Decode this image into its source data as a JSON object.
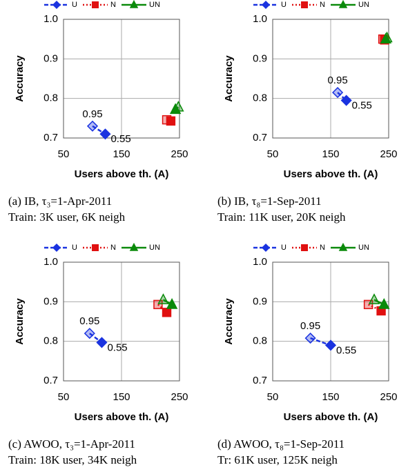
{
  "chart_data": [
    {
      "type": "scatter",
      "xlabel": "Users above th. (A)",
      "ylabel": "Accuracy",
      "xlim": [
        50,
        250
      ],
      "ylim": [
        0.7,
        1.0
      ],
      "xticks": [
        50,
        150,
        250
      ],
      "yticks": [
        0.7,
        0.8,
        0.9,
        {
          "value": 1.0,
          "label": "1.0"
        }
      ],
      "grid": true,
      "legend": "top",
      "caption": [
        "(a) IB, τ₃=1-Apr-2011",
        "Train: 3K user, 6K neigh"
      ],
      "annotations": [
        "0.95",
        "0.55"
      ],
      "series": [
        {
          "name": "U",
          "color": "#1a33e0",
          "marker": "diamond",
          "dash": "dashed",
          "x": [
            100,
            122
          ],
          "values": [
            0.73,
            0.71
          ]
        },
        {
          "name": "N",
          "color": "#e01010",
          "marker": "square",
          "dash": "dotted",
          "x": [
            228,
            235
          ],
          "values": [
            0.746,
            0.743
          ]
        },
        {
          "name": "UN",
          "color": "#0a8a0a",
          "marker": "triangle",
          "dash": "solid",
          "x": [
            248,
            243
          ],
          "values": [
            0.778,
            0.772
          ]
        }
      ]
    },
    {
      "type": "scatter",
      "xlabel": "Users above th. (A)",
      "ylabel": "Accuracy",
      "xlim": [
        50,
        250
      ],
      "ylim": [
        0.7,
        1.0
      ],
      "xticks": [
        50,
        150,
        250
      ],
      "yticks": [
        0.7,
        0.8,
        0.9,
        {
          "value": 1.0,
          "label": "1.0"
        }
      ],
      "grid": true,
      "legend": "top",
      "caption": [
        "(b) IB, τ₈=1-Sep-2011",
        "Train: 11K user, 20K neigh"
      ],
      "annotations": [
        "0.95",
        "0.55"
      ],
      "series": [
        {
          "name": "U",
          "color": "#1a33e0",
          "marker": "diamond",
          "dash": "dashed",
          "x": [
            162,
            177
          ],
          "values": [
            0.815,
            0.795
          ]
        },
        {
          "name": "N",
          "color": "#e01010",
          "marker": "square",
          "dash": "dotted",
          "x": [
            240,
            243
          ],
          "values": [
            0.95,
            0.948
          ]
        },
        {
          "name": "UN",
          "color": "#0a8a0a",
          "marker": "triangle",
          "dash": "solid",
          "x": [
            247,
            245
          ],
          "values": [
            0.953,
            0.95
          ]
        }
      ]
    },
    {
      "type": "scatter",
      "xlabel": "Users above th. (A)",
      "ylabel": "Accuracy",
      "xlim": [
        50,
        250
      ],
      "ylim": [
        0.7,
        1.0
      ],
      "xticks": [
        50,
        150,
        250
      ],
      "yticks": [
        0.7,
        0.8,
        0.9,
        {
          "value": 1.0,
          "label": "1.0"
        }
      ],
      "grid": true,
      "legend": "top",
      "caption": [
        "(c) AWOO, τ₃=1-Apr-2011",
        "Train: 18K user, 34K neigh"
      ],
      "annotations": [
        "0.95",
        "0.55"
      ],
      "series": [
        {
          "name": "U",
          "color": "#1a33e0",
          "marker": "diamond",
          "dash": "dashed",
          "x": [
            95,
            116
          ],
          "values": [
            0.82,
            0.797
          ]
        },
        {
          "name": "N",
          "color": "#e01010",
          "marker": "square",
          "dash": "dotted",
          "x": [
            213,
            228
          ],
          "values": [
            0.893,
            0.873
          ]
        },
        {
          "name": "UN",
          "color": "#0a8a0a",
          "marker": "triangle",
          "dash": "solid",
          "x": [
            222,
            237
          ],
          "values": [
            0.905,
            0.893
          ]
        }
      ]
    },
    {
      "type": "scatter",
      "xlabel": "Users above th. (A)",
      "ylabel": "Accuracy",
      "xlim": [
        50,
        250
      ],
      "ylim": [
        0.7,
        1.0
      ],
      "xticks": [
        50,
        150,
        250
      ],
      "yticks": [
        0.7,
        0.8,
        0.9,
        {
          "value": 1.0,
          "label": "1.0"
        }
      ],
      "grid": true,
      "legend": "top",
      "caption": [
        "(d) AWOO, τ₈=1-Sep-2011",
        "Tr: 61K user, 125K neigh"
      ],
      "annotations": [
        "0.95",
        "0.55"
      ],
      "series": [
        {
          "name": "U",
          "color": "#1a33e0",
          "marker": "diamond",
          "dash": "dashed",
          "x": [
            115,
            150
          ],
          "values": [
            0.808,
            0.79
          ]
        },
        {
          "name": "N",
          "color": "#e01010",
          "marker": "square",
          "dash": "dotted",
          "x": [
            215,
            237
          ],
          "values": [
            0.893,
            0.877
          ]
        },
        {
          "name": "UN",
          "color": "#0a8a0a",
          "marker": "triangle",
          "dash": "solid",
          "x": [
            225,
            242
          ],
          "values": [
            0.905,
            0.893
          ]
        }
      ]
    }
  ]
}
